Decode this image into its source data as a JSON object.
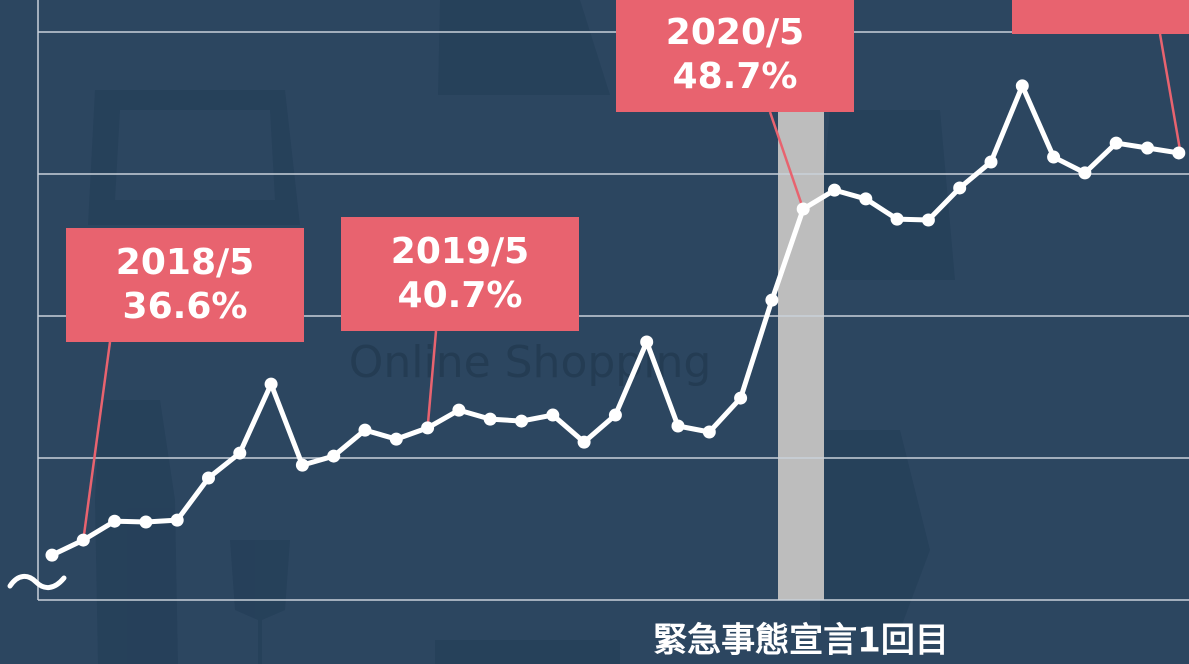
{
  "chart_data": {
    "type": "line",
    "categories": [
      null,
      "2018/5",
      null,
      null,
      null,
      null,
      null,
      null,
      null,
      null,
      null,
      null,
      "2019/5",
      null,
      null,
      null,
      null,
      null,
      null,
      null,
      null,
      null,
      null,
      null,
      "2020/5",
      null,
      null,
      null,
      null,
      null,
      null,
      null,
      null,
      null,
      null,
      null,
      null
    ],
    "series": [
      {
        "color": "#ffffff",
        "values": [
          36.05,
          36.6,
          37.29,
          37.26,
          37.33,
          38.87,
          39.78,
          42.3,
          39.34,
          39.67,
          40.62,
          40.29,
          40.7,
          41.35,
          41.02,
          40.95,
          41.17,
          40.18,
          41.17,
          43.84,
          40.77,
          40.55,
          41.79,
          45.37,
          48.7,
          49.39,
          49.07,
          48.33,
          48.3,
          49.47,
          50.42,
          53.2,
          50.6,
          50.02,
          51.11,
          50.93,
          50.75
        ],
        "value_labels": [
          null,
          "36.6%",
          null,
          null,
          null,
          null,
          null,
          null,
          null,
          null,
          null,
          null,
          "40.7%",
          null,
          null,
          null,
          null,
          null,
          null,
          null,
          null,
          null,
          null,
          null,
          "48.7%",
          null,
          null,
          null,
          null,
          null,
          null,
          null,
          null,
          null,
          null,
          null,
          null
        ]
      }
    ],
    "ylim": [
      34.41,
      56.34
    ],
    "yticks": [
      34.41,
      39.6,
      44.79,
      49.98,
      55.17
    ],
    "grid": true,
    "annotation_color": "#e8636f",
    "band_label": "緊急事態宣言1回目",
    "background_text": "Online Shopping"
  }
}
